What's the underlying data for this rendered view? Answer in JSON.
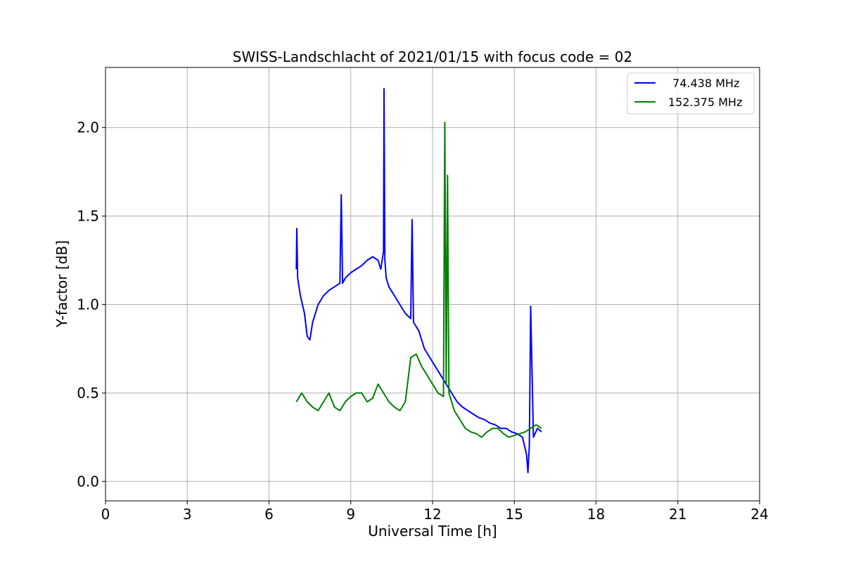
{
  "chart_data": {
    "type": "line",
    "title": "SWISS-Landschlacht of 2021/01/15 with focus code = 02",
    "xlabel": "Universal Time [h]",
    "ylabel": "Y-factor [dB]",
    "xlim": [
      0,
      24
    ],
    "ylim": [
      -0.11,
      2.34
    ],
    "xticks": [
      0,
      3,
      6,
      9,
      12,
      15,
      18,
      21,
      24
    ],
    "xtick_labels": [
      "0",
      "3",
      "6",
      "9",
      "12",
      "15",
      "18",
      "21",
      "24"
    ],
    "yticks": [
      0.0,
      0.5,
      1.0,
      1.5,
      2.0
    ],
    "ytick_labels": [
      "0.0",
      "0.5",
      "1.0",
      "1.5",
      "2.0"
    ],
    "grid": true,
    "legend_position": "top-right",
    "series": [
      {
        "name": "  74.438 MHz",
        "color": "#0000ff",
        "x": [
          7.0,
          7.02,
          7.05,
          7.15,
          7.3,
          7.4,
          7.5,
          7.6,
          7.7,
          7.8,
          8.0,
          8.2,
          8.4,
          8.6,
          8.65,
          8.7,
          8.8,
          9.0,
          9.2,
          9.4,
          9.6,
          9.8,
          10.0,
          10.1,
          10.2,
          10.22,
          10.25,
          10.3,
          10.4,
          10.6,
          10.8,
          11.0,
          11.2,
          11.25,
          11.3,
          11.5,
          11.7,
          11.9,
          12.1,
          12.3,
          12.5,
          12.7,
          12.9,
          13.1,
          13.3,
          13.5,
          13.7,
          13.9,
          14.1,
          14.3,
          14.5,
          14.7,
          14.9,
          15.1,
          15.3,
          15.45,
          15.5,
          15.55,
          15.6,
          15.7,
          15.85,
          16.0
        ],
        "y": [
          1.2,
          1.43,
          1.15,
          1.05,
          0.95,
          0.82,
          0.8,
          0.9,
          0.95,
          1.0,
          1.05,
          1.08,
          1.1,
          1.12,
          1.62,
          1.12,
          1.15,
          1.18,
          1.2,
          1.22,
          1.25,
          1.27,
          1.25,
          1.2,
          1.3,
          2.22,
          1.25,
          1.15,
          1.1,
          1.05,
          1.0,
          0.95,
          0.92,
          1.48,
          0.9,
          0.85,
          0.75,
          0.7,
          0.65,
          0.6,
          0.55,
          0.5,
          0.45,
          0.42,
          0.4,
          0.38,
          0.36,
          0.35,
          0.33,
          0.32,
          0.3,
          0.3,
          0.28,
          0.27,
          0.25,
          0.15,
          0.05,
          0.2,
          0.99,
          0.25,
          0.3,
          0.28
        ]
      },
      {
        "name": "152.375 MHz",
        "color": "#008000",
        "x": [
          7.0,
          7.2,
          7.4,
          7.6,
          7.8,
          8.0,
          8.2,
          8.4,
          8.6,
          8.8,
          9.0,
          9.2,
          9.4,
          9.6,
          9.8,
          10.0,
          10.2,
          10.4,
          10.6,
          10.8,
          11.0,
          11.2,
          11.4,
          11.6,
          11.8,
          12.0,
          12.2,
          12.4,
          12.45,
          12.5,
          12.55,
          12.6,
          12.8,
          13.0,
          13.2,
          13.4,
          13.6,
          13.8,
          14.0,
          14.2,
          14.4,
          14.6,
          14.8,
          15.0,
          15.2,
          15.4,
          15.6,
          15.8,
          16.0
        ],
        "y": [
          0.45,
          0.5,
          0.45,
          0.42,
          0.4,
          0.45,
          0.5,
          0.42,
          0.4,
          0.45,
          0.48,
          0.5,
          0.5,
          0.45,
          0.47,
          0.55,
          0.5,
          0.45,
          0.42,
          0.4,
          0.45,
          0.7,
          0.72,
          0.65,
          0.6,
          0.55,
          0.5,
          0.48,
          2.03,
          0.55,
          1.73,
          0.5,
          0.4,
          0.35,
          0.3,
          0.28,
          0.27,
          0.25,
          0.28,
          0.3,
          0.3,
          0.27,
          0.25,
          0.26,
          0.27,
          0.28,
          0.3,
          0.32,
          0.3
        ]
      }
    ]
  }
}
